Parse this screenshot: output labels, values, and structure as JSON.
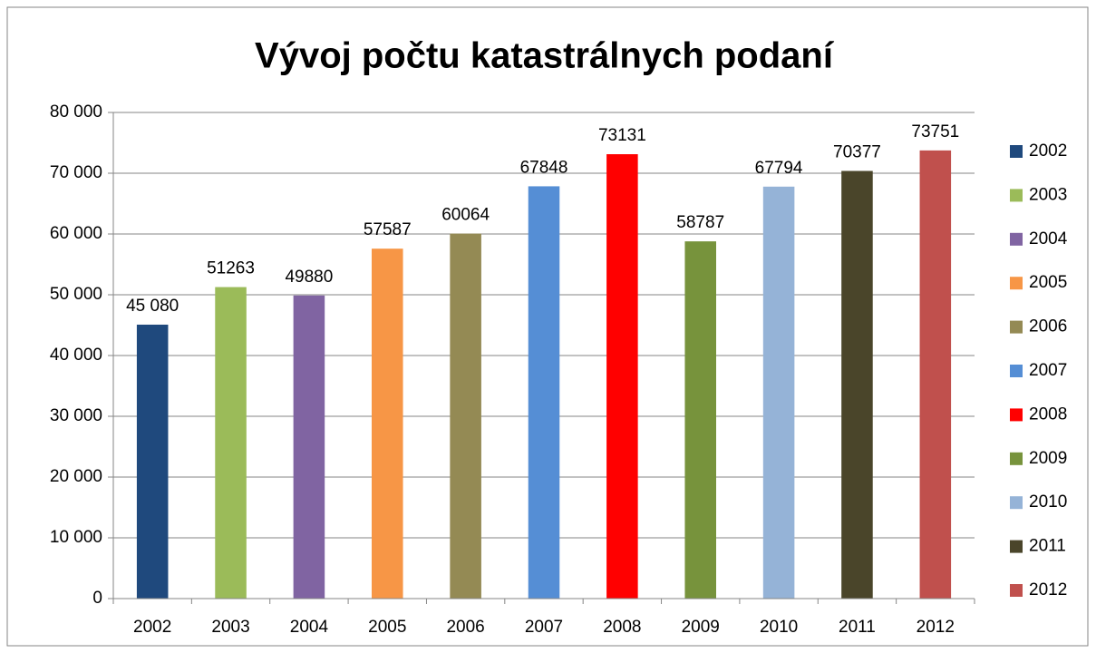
{
  "chart_data": {
    "type": "bar",
    "title": "Vývoj počtu katastrálnych podaní",
    "categories": [
      "2002",
      "2003",
      "2004",
      "2005",
      "2006",
      "2007",
      "2008",
      "2009",
      "2010",
      "2011",
      "2012"
    ],
    "values": [
      45080,
      51263,
      49880,
      57587,
      60064,
      67848,
      73131,
      58787,
      67794,
      70377,
      73751
    ],
    "value_labels": [
      "45 080",
      "51263",
      "49880",
      "57587",
      "60064",
      "67848",
      "73131",
      "58787",
      "67794",
      "70377",
      "73751"
    ],
    "colors": [
      "#1f497d",
      "#9bbb59",
      "#8064a2",
      "#f79646",
      "#948a54",
      "#558ed5",
      "#ff0000",
      "#77933c",
      "#95b3d7",
      "#4a452a",
      "#c0504d"
    ],
    "ylim": [
      0,
      80000
    ],
    "yticks": [
      0,
      {
        "value": 10000,
        "label": "10 000"
      },
      {
        "value": 20000,
        "label": "20 000"
      },
      {
        "value": 30000,
        "label": "30 000"
      },
      {
        "value": 40000,
        "label": "40 000"
      },
      {
        "value": 50000,
        "label": "50 000"
      },
      {
        "value": 60000,
        "label": "60 000"
      },
      {
        "value": 70000,
        "label": "70 000"
      },
      {
        "value": 80000,
        "label": "80 000"
      }
    ],
    "grid": true,
    "legend": "right"
  }
}
